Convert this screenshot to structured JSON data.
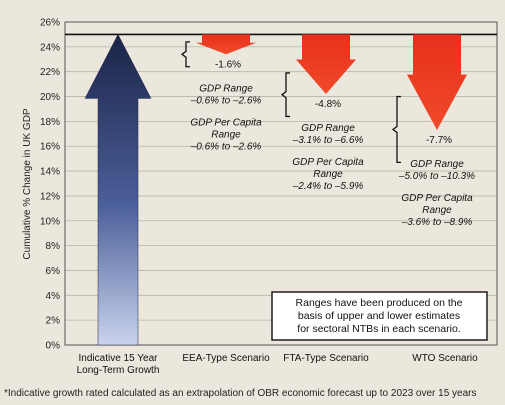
{
  "chart_data": {
    "type": "bar",
    "ylabel": "Cumulative % Change in UK GDP",
    "ylim": [
      0,
      26
    ],
    "yticks": [
      0,
      2,
      4,
      6,
      8,
      10,
      12,
      14,
      16,
      18,
      20,
      22,
      24,
      26
    ],
    "ytick_labels": [
      "0%",
      "2%",
      "4%",
      "6%",
      "8%",
      "10%",
      "12%",
      "14%",
      "16%",
      "18%",
      "20%",
      "22%",
      "24%",
      "26%"
    ],
    "baseline": 25,
    "categories": [
      "Indicative 15 Year Long-Term Growth",
      "EEA-Type Scenario",
      "FTA-Type Scenario",
      "WTO Scenario"
    ],
    "category_lines": [
      [
        "Indicative 15 Year",
        "Long-Term Growth"
      ],
      [
        "EEA-Type Scenario"
      ],
      [
        "FTA-Type Scenario"
      ],
      [
        "WTO Scenario"
      ]
    ],
    "growth_arrow": {
      "from": 0,
      "to": 25,
      "color": "#1c2447"
    },
    "scenarios": [
      {
        "category": "EEA-Type Scenario",
        "change": -1.6,
        "label": "-1.6%",
        "range_low": -0.6,
        "range_high": -2.6,
        "gdp_range_title": "GDP Range",
        "gdp_range": "–0.6% to –2.6%",
        "per_capita_title": [
          "GDP Per Capita",
          "Range"
        ],
        "per_capita_range": "–0.6% to –2.6%"
      },
      {
        "category": "FTA-Type Scenario",
        "change": -4.8,
        "label": "-4.8%",
        "range_low": -3.1,
        "range_high": -6.6,
        "gdp_range_title": "GDP Range",
        "gdp_range": "–3.1% to –6.6%",
        "per_capita_title": [
          "GDP Per Capita",
          "Range"
        ],
        "per_capita_range": "–2.4% to –5.9%"
      },
      {
        "category": "WTO Scenario",
        "change": -7.7,
        "label": "-7.7%",
        "range_low": -5.0,
        "range_high": -10.3,
        "gdp_range_title": "GDP Range",
        "gdp_range": "–5.0% to –10.3%",
        "per_capita_title": [
          "GDP Per Capita",
          "Range"
        ],
        "per_capita_range": "–3.6% to –8.9%"
      }
    ],
    "annotation": [
      "Ranges have been produced on the",
      "basis of upper and lower estimates",
      "for sectoral NTBs in each scenario."
    ],
    "colors": {
      "decline": "#e8301c",
      "growth": "#1c2447",
      "background": "#ece7dc"
    }
  },
  "footnote": "*Indicative growth rated calculated as an extrapolation of OBR economic forecast up to 2023 over 15 years"
}
